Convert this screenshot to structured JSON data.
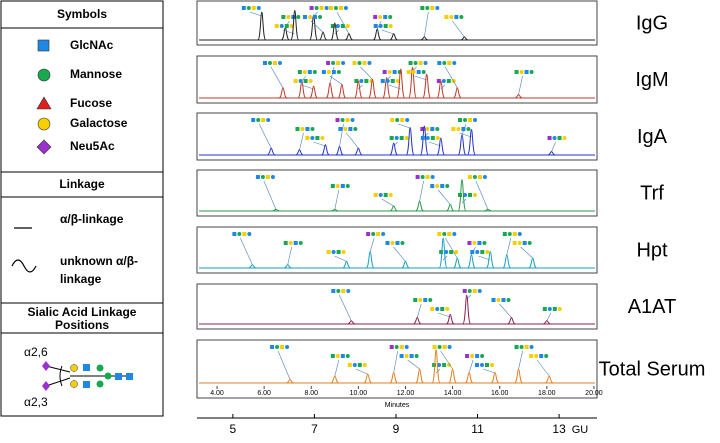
{
  "legend": {
    "symbols_title": "Symbols",
    "symbols": [
      "GlcNAc",
      "Mannose",
      "Fucose",
      "Galactose",
      "Neu5Ac"
    ],
    "linkage_title": "Linkage",
    "linkages": [
      "α/β-linkage",
      "unknown α/β-",
      "linkage"
    ],
    "sialic_title": [
      "Sialic Acid Linkage",
      "Positions"
    ],
    "sialic_labels": [
      "α2,6",
      "α2,3"
    ]
  },
  "panels": [
    {
      "label": "IgG",
      "color": "#222222",
      "ylim": [
        0,
        1
      ],
      "peaks": {
        "x": [
          5.9,
          6.9,
          7.3,
          8.1,
          8.5,
          9.0,
          9.6,
          10.8,
          11.5,
          12.8,
          14.5
        ],
        "y": [
          0.9,
          0.4,
          0.95,
          0.8,
          0.25,
          0.55,
          0.2,
          0.35,
          0.2,
          0.1,
          0.1
        ]
      }
    },
    {
      "label": "IgM",
      "color": "#c0392b",
      "ylim": [
        0,
        1
      ],
      "peaks": {
        "x": [
          6.8,
          7.6,
          8.1,
          8.8,
          9.3,
          10.0,
          10.6,
          11.2,
          11.8,
          12.3,
          12.9,
          13.5,
          14.2,
          16.8
        ],
        "y": [
          0.3,
          0.5,
          0.35,
          0.45,
          0.4,
          0.5,
          0.55,
          0.6,
          0.85,
          0.9,
          0.7,
          0.5,
          0.3,
          0.1
        ]
      }
    },
    {
      "label": "IgA",
      "color": "#2233cc",
      "ylim": [
        0,
        1
      ],
      "peaks": {
        "x": [
          6.3,
          7.5,
          8.6,
          9.2,
          10.0,
          11.5,
          12.2,
          12.8,
          13.5,
          14.4,
          14.8,
          18.2
        ],
        "y": [
          0.2,
          0.15,
          0.3,
          0.25,
          0.2,
          0.35,
          0.8,
          0.85,
          0.5,
          0.6,
          0.75,
          0.1
        ]
      }
    },
    {
      "label": "Trf",
      "color": "#2a9a4a",
      "ylim": [
        0,
        1
      ],
      "peaks": {
        "x": [
          6.5,
          9.0,
          11.5,
          12.6,
          13.9,
          14.4,
          15.5
        ],
        "y": [
          0.05,
          0.05,
          0.15,
          0.3,
          0.2,
          0.95,
          0.05
        ]
      }
    },
    {
      "label": "Hpt",
      "color": "#1aa0c0",
      "ylim": [
        0,
        1
      ],
      "peaks": {
        "x": [
          5.5,
          7.0,
          9.5,
          10.5,
          12.0,
          13.6,
          14.2,
          14.8,
          15.6,
          16.3,
          17.4
        ],
        "y": [
          0.1,
          0.1,
          0.2,
          0.5,
          0.2,
          0.9,
          0.3,
          0.4,
          0.5,
          0.4,
          0.3
        ]
      }
    },
    {
      "label": "A1AT",
      "color": "#8b2252",
      "ylim": [
        0,
        1
      ],
      "peaks": {
        "x": [
          9.7,
          12.5,
          13.9,
          14.6,
          16.5,
          18.0
        ],
        "y": [
          0.1,
          0.2,
          0.3,
          0.9,
          0.2,
          0.1
        ]
      }
    },
    {
      "label": "Total Serum",
      "color": "#e08020",
      "ylim": [
        0,
        1
      ],
      "peaks": {
        "x": [
          7.1,
          9.0,
          10.4,
          11.5,
          12.6,
          13.3,
          14.0,
          14.7,
          15.8,
          16.8,
          18.1
        ],
        "y": [
          0.1,
          0.2,
          0.25,
          0.3,
          0.4,
          0.95,
          0.4,
          0.3,
          0.3,
          0.4,
          0.2
        ]
      }
    }
  ],
  "minutes_axis": {
    "label": "Minutes",
    "xlim": [
      3.15,
      20.13
    ],
    "xticks": [
      {
        "value": 4,
        "label": "4.00"
      },
      {
        "value": 6,
        "label": "6.00"
      },
      {
        "value": 8,
        "label": "8.00"
      },
      {
        "value": 10,
        "label": "10.00"
      },
      {
        "value": 12,
        "label": "12.00"
      },
      {
        "value": 14,
        "label": "14.00"
      },
      {
        "value": 16,
        "label": "16.00"
      },
      {
        "value": 18,
        "label": "18.00"
      },
      {
        "value": 20,
        "label": "20.00"
      }
    ]
  },
  "gu_axis": {
    "label": "GU",
    "xlim": [
      4.12,
      13.93
    ],
    "xticks": [
      5,
      7,
      9,
      11,
      13
    ]
  }
}
